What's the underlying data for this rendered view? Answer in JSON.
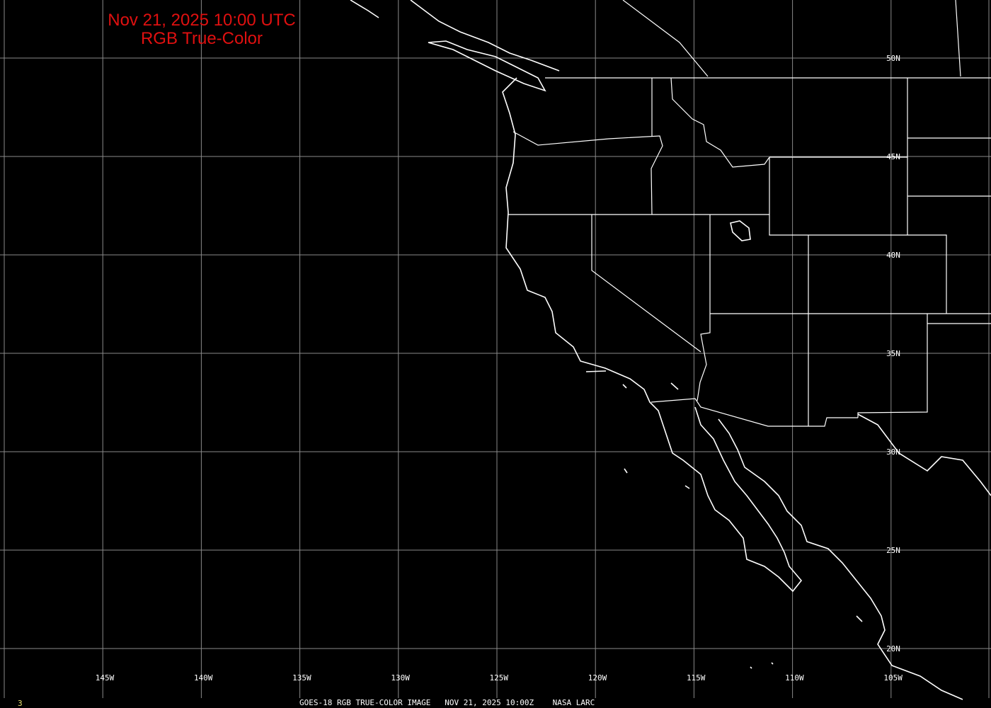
{
  "title": {
    "line1": "Nov 21, 2025 10:00 UTC",
    "line2": "RGB True-Color",
    "color": "#e01010"
  },
  "map": {
    "longitude_labels": [
      "145W",
      "140W",
      "135W",
      "130W",
      "125W",
      "120W",
      "115W",
      "110W",
      "105W"
    ],
    "latitude_labels": [
      "50N",
      "45N",
      "40N",
      "35N",
      "30N",
      "25N",
      "20N"
    ],
    "grid_color": "#8a8a8a",
    "coast_color": "#ffffff",
    "background": "#000000"
  },
  "footer": {
    "frame_number": "3",
    "caption": "GOES-18 RGB TRUE-COLOR IMAGE   NOV 21, 2025 10:00Z    NASA LARC"
  }
}
